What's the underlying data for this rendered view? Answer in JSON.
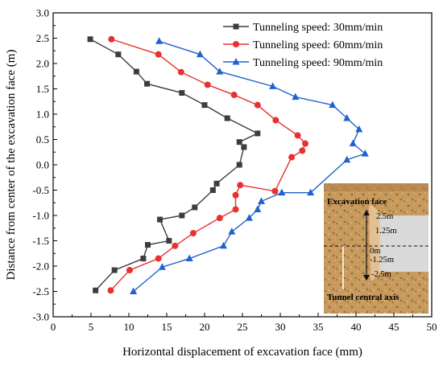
{
  "chart_data": {
    "type": "line",
    "xlabel": "Horizontal displacement of excavation face (mm)",
    "ylabel": "Distance from center of the excavation face (m)",
    "xlim": [
      0,
      50
    ],
    "ylim": [
      -3.0,
      3.0
    ],
    "xticks": [
      "0",
      "5",
      "10",
      "15",
      "20",
      "25",
      "30",
      "35",
      "40",
      "45",
      "50"
    ],
    "yticks": [
      "-3.0",
      "-2.5",
      "-2.0",
      "-1.5",
      "-1.0",
      "-0.5",
      "0.0",
      "0.5",
      "1.0",
      "1.5",
      "2.0",
      "2.5",
      "3.0"
    ],
    "grid": false,
    "legend_position": "top-right",
    "series": [
      {
        "name": "Tunneling speed: 30mm/min",
        "color": "#3d3d3d",
        "marker": "square",
        "points": [
          [
            4.9,
            2.48
          ],
          [
            8.6,
            2.18
          ],
          [
            11.0,
            1.84
          ],
          [
            12.4,
            1.6
          ],
          [
            17.0,
            1.42
          ],
          [
            20.0,
            1.18
          ],
          [
            23.0,
            0.92
          ],
          [
            27.0,
            0.62
          ],
          [
            24.6,
            0.45
          ],
          [
            25.2,
            0.35
          ],
          [
            24.6,
            0.0
          ],
          [
            21.6,
            -0.37
          ],
          [
            21.1,
            -0.5
          ],
          [
            18.7,
            -0.84
          ],
          [
            17.0,
            -1.0
          ],
          [
            14.1,
            -1.08
          ],
          [
            15.3,
            -1.5
          ],
          [
            12.5,
            -1.58
          ],
          [
            11.9,
            -1.85
          ],
          [
            8.1,
            -2.08
          ],
          [
            5.6,
            -2.48
          ]
        ]
      },
      {
        "name": "Tunneling speed: 60mm/min",
        "color": "#e8312f",
        "marker": "circle",
        "points": [
          [
            7.7,
            2.48
          ],
          [
            13.9,
            2.18
          ],
          [
            16.9,
            1.83
          ],
          [
            20.4,
            1.58
          ],
          [
            23.9,
            1.38
          ],
          [
            27.0,
            1.18
          ],
          [
            29.4,
            0.88
          ],
          [
            32.3,
            0.58
          ],
          [
            33.3,
            0.42
          ],
          [
            32.9,
            0.28
          ],
          [
            31.5,
            0.15
          ],
          [
            29.3,
            -0.52
          ],
          [
            24.7,
            -0.4
          ],
          [
            24.1,
            -0.6
          ],
          [
            24.1,
            -0.88
          ],
          [
            22.0,
            -1.05
          ],
          [
            18.5,
            -1.35
          ],
          [
            16.1,
            -1.6
          ],
          [
            13.9,
            -1.85
          ],
          [
            10.1,
            -2.08
          ],
          [
            7.6,
            -2.48
          ]
        ]
      },
      {
        "name": "Tunneling speed: 90mm/min",
        "color": "#1f62cc",
        "marker": "triangle",
        "points": [
          [
            14.0,
            2.44
          ],
          [
            19.4,
            2.18
          ],
          [
            22.0,
            1.84
          ],
          [
            29.0,
            1.55
          ],
          [
            32.0,
            1.34
          ],
          [
            36.9,
            1.18
          ],
          [
            38.8,
            0.92
          ],
          [
            40.4,
            0.7
          ],
          [
            39.6,
            0.42
          ],
          [
            41.2,
            0.22
          ],
          [
            38.8,
            0.1
          ],
          [
            34.0,
            -0.55
          ],
          [
            30.2,
            -0.55
          ],
          [
            27.5,
            -0.72
          ],
          [
            27.0,
            -0.88
          ],
          [
            25.9,
            -1.05
          ],
          [
            23.6,
            -1.32
          ],
          [
            22.5,
            -1.6
          ],
          [
            18.0,
            -1.85
          ],
          [
            14.4,
            -2.02
          ],
          [
            10.6,
            -2.5
          ]
        ]
      }
    ],
    "inset": {
      "labels": {
        "face": "Excavation face",
        "axis": "Tunnel central axis",
        "top": "2.5m",
        "upper": "1.25m",
        "zero": "0m",
        "lower": "-1.25m",
        "bottom": "-2.5m"
      },
      "colors": {
        "soil": "#c79a5d",
        "soil_dark": "#9b6d35",
        "cavity": "#d9d9d9"
      }
    }
  }
}
